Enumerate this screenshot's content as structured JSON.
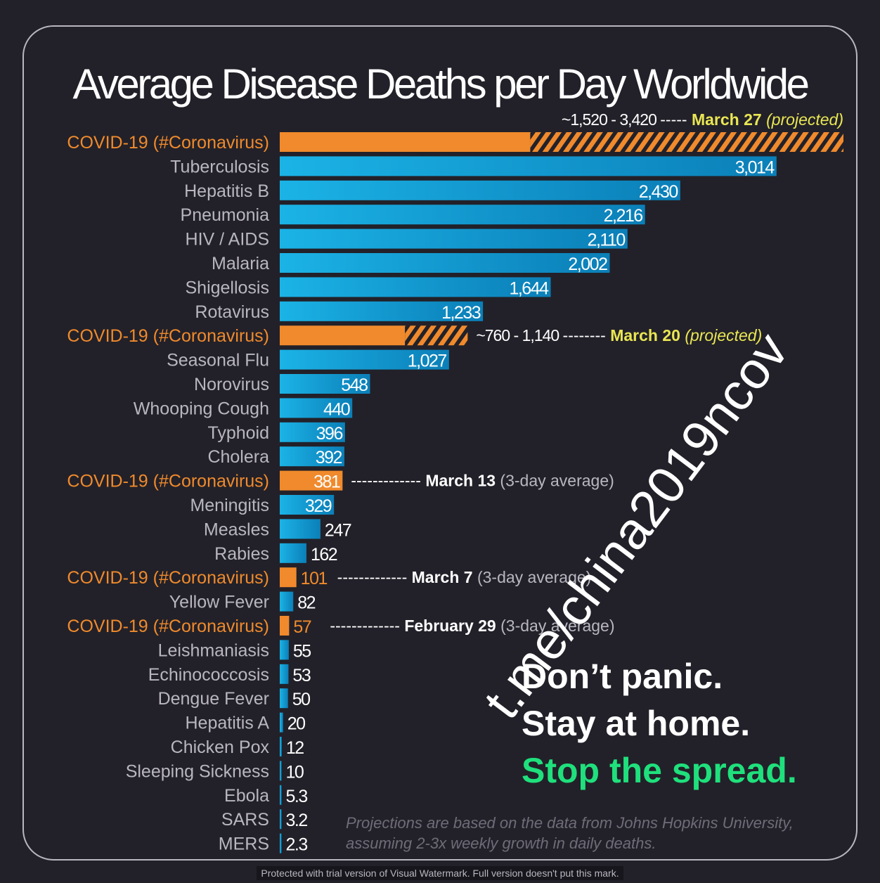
{
  "colors": {
    "background": "#222129",
    "disease_bar": "#13a4d6",
    "covid_bar": "#f08a2c",
    "covid_label": "#f08a2c",
    "disease_label": "#b9b6c0",
    "highlight_date": "#e9e653",
    "green_message": "#1fe07c"
  },
  "chart_data": {
    "type": "bar",
    "orientation": "horizontal",
    "title": "Average Disease Deaths per Day Worldwide",
    "xlim": [
      0,
      3420
    ],
    "grid": false,
    "categories": [
      "COVID-19 (#Coronavirus)",
      "Tuberculosis",
      "Hepatitis B",
      "Pneumonia",
      "HIV / AIDS",
      "Malaria",
      "Shigellosis",
      "Rotavirus",
      "COVID-19 (#Coronavirus)",
      "Seasonal Flu",
      "Norovirus",
      "Whooping Cough",
      "Typhoid",
      "Cholera",
      "COVID-19 (#Coronavirus)",
      "Meningitis",
      "Measles",
      "Rabies",
      "COVID-19 (#Coronavirus)",
      "Yellow Fever",
      "COVID-19 (#Coronavirus)",
      "Leishmaniasis",
      "Echinococcosis",
      "Dengue Fever",
      "Hepatitis A",
      "Chicken Pox",
      "Sleeping Sickness",
      "Ebola",
      "SARS",
      "MERS"
    ],
    "bars": [
      {
        "label": "COVID-19 (#Coronavirus)",
        "covid": true,
        "value": 1520,
        "max": 3420,
        "value_label": "",
        "annotation": {
          "range": "~1,520 - 3,420",
          "dashes": "-----",
          "date": "March 27",
          "note": "(projected)",
          "position": "above-right"
        }
      },
      {
        "label": "Tuberculosis",
        "covid": false,
        "value": 3014,
        "value_label": "3,014"
      },
      {
        "label": "Hepatitis B",
        "covid": false,
        "value": 2430,
        "value_label": "2,430"
      },
      {
        "label": "Pneumonia",
        "covid": false,
        "value": 2216,
        "value_label": "2,216"
      },
      {
        "label": "HIV / AIDS",
        "covid": false,
        "value": 2110,
        "value_label": "2,110"
      },
      {
        "label": "Malaria",
        "covid": false,
        "value": 2002,
        "value_label": "2,002"
      },
      {
        "label": "Shigellosis",
        "covid": false,
        "value": 1644,
        "value_label": "1,644"
      },
      {
        "label": "Rotavirus",
        "covid": false,
        "value": 1233,
        "value_label": "1,233"
      },
      {
        "label": "COVID-19 (#Coronavirus)",
        "covid": true,
        "value": 760,
        "max": 1140,
        "value_label": "",
        "annotation": {
          "range": "~760 - 1,140",
          "dashes": "--------",
          "date": "March 20",
          "note": "(projected)",
          "position": "right"
        }
      },
      {
        "label": "Seasonal Flu",
        "covid": false,
        "value": 1027,
        "value_label": "1,027"
      },
      {
        "label": "Norovirus",
        "covid": false,
        "value": 548,
        "value_label": "548"
      },
      {
        "label": "Whooping Cough",
        "covid": false,
        "value": 440,
        "value_label": "440"
      },
      {
        "label": "Typhoid",
        "covid": false,
        "value": 396,
        "value_label": "396"
      },
      {
        "label": "Cholera",
        "covid": false,
        "value": 392,
        "value_label": "392"
      },
      {
        "label": "COVID-19 (#Coronavirus)",
        "covid": true,
        "value": 381,
        "value_label": "381",
        "annotation": {
          "range": "",
          "dashes": "-------------",
          "date": "March 13",
          "note": "(3-day average)",
          "position": "right"
        }
      },
      {
        "label": "Meningitis",
        "covid": false,
        "value": 329,
        "value_label": "329"
      },
      {
        "label": "Measles",
        "covid": false,
        "value": 247,
        "value_label": "247"
      },
      {
        "label": "Rabies",
        "covid": false,
        "value": 162,
        "value_label": "162"
      },
      {
        "label": "COVID-19 (#Coronavirus)",
        "covid": true,
        "value": 101,
        "value_label": "101",
        "annotation": {
          "range": "",
          "dashes": "-------------",
          "date": "March 7",
          "note": "(3-day average)",
          "position": "right"
        }
      },
      {
        "label": "Yellow Fever",
        "covid": false,
        "value": 82,
        "value_label": "82"
      },
      {
        "label": "COVID-19 (#Coronavirus)",
        "covid": true,
        "value": 57,
        "value_label": "57",
        "annotation": {
          "range": "",
          "dashes": "-------------",
          "date": "February 29",
          "note": "(3-day average)",
          "position": "right"
        }
      },
      {
        "label": "Leishmaniasis",
        "covid": false,
        "value": 55,
        "value_label": "55"
      },
      {
        "label": "Echinococcosis",
        "covid": false,
        "value": 53,
        "value_label": "53"
      },
      {
        "label": "Dengue Fever",
        "covid": false,
        "value": 50,
        "value_label": "50"
      },
      {
        "label": "Hepatitis A",
        "covid": false,
        "value": 20,
        "value_label": "20"
      },
      {
        "label": "Chicken Pox",
        "covid": false,
        "value": 12,
        "value_label": "12"
      },
      {
        "label": "Sleeping Sickness",
        "covid": false,
        "value": 10,
        "value_label": "10"
      },
      {
        "label": "Ebola",
        "covid": false,
        "value": 5.3,
        "value_label": "5.3"
      },
      {
        "label": "SARS",
        "covid": false,
        "value": 3.2,
        "value_label": "3.2"
      },
      {
        "label": "MERS",
        "covid": false,
        "value": 2.3,
        "value_label": "2.3"
      }
    ]
  },
  "messages": {
    "line1": "Don’t panic.",
    "line2": "Stay at home.",
    "line3": "Stop the spread."
  },
  "footnote": {
    "line1": "Projections are based on the data from Johns Hopkins University,",
    "line2": "assuming 2-3x weekly growth in daily deaths."
  },
  "watermark": "t.me/china2019ncov",
  "protection_notice": "Protected with trial version of Visual Watermark. Full version doesn't put this mark."
}
